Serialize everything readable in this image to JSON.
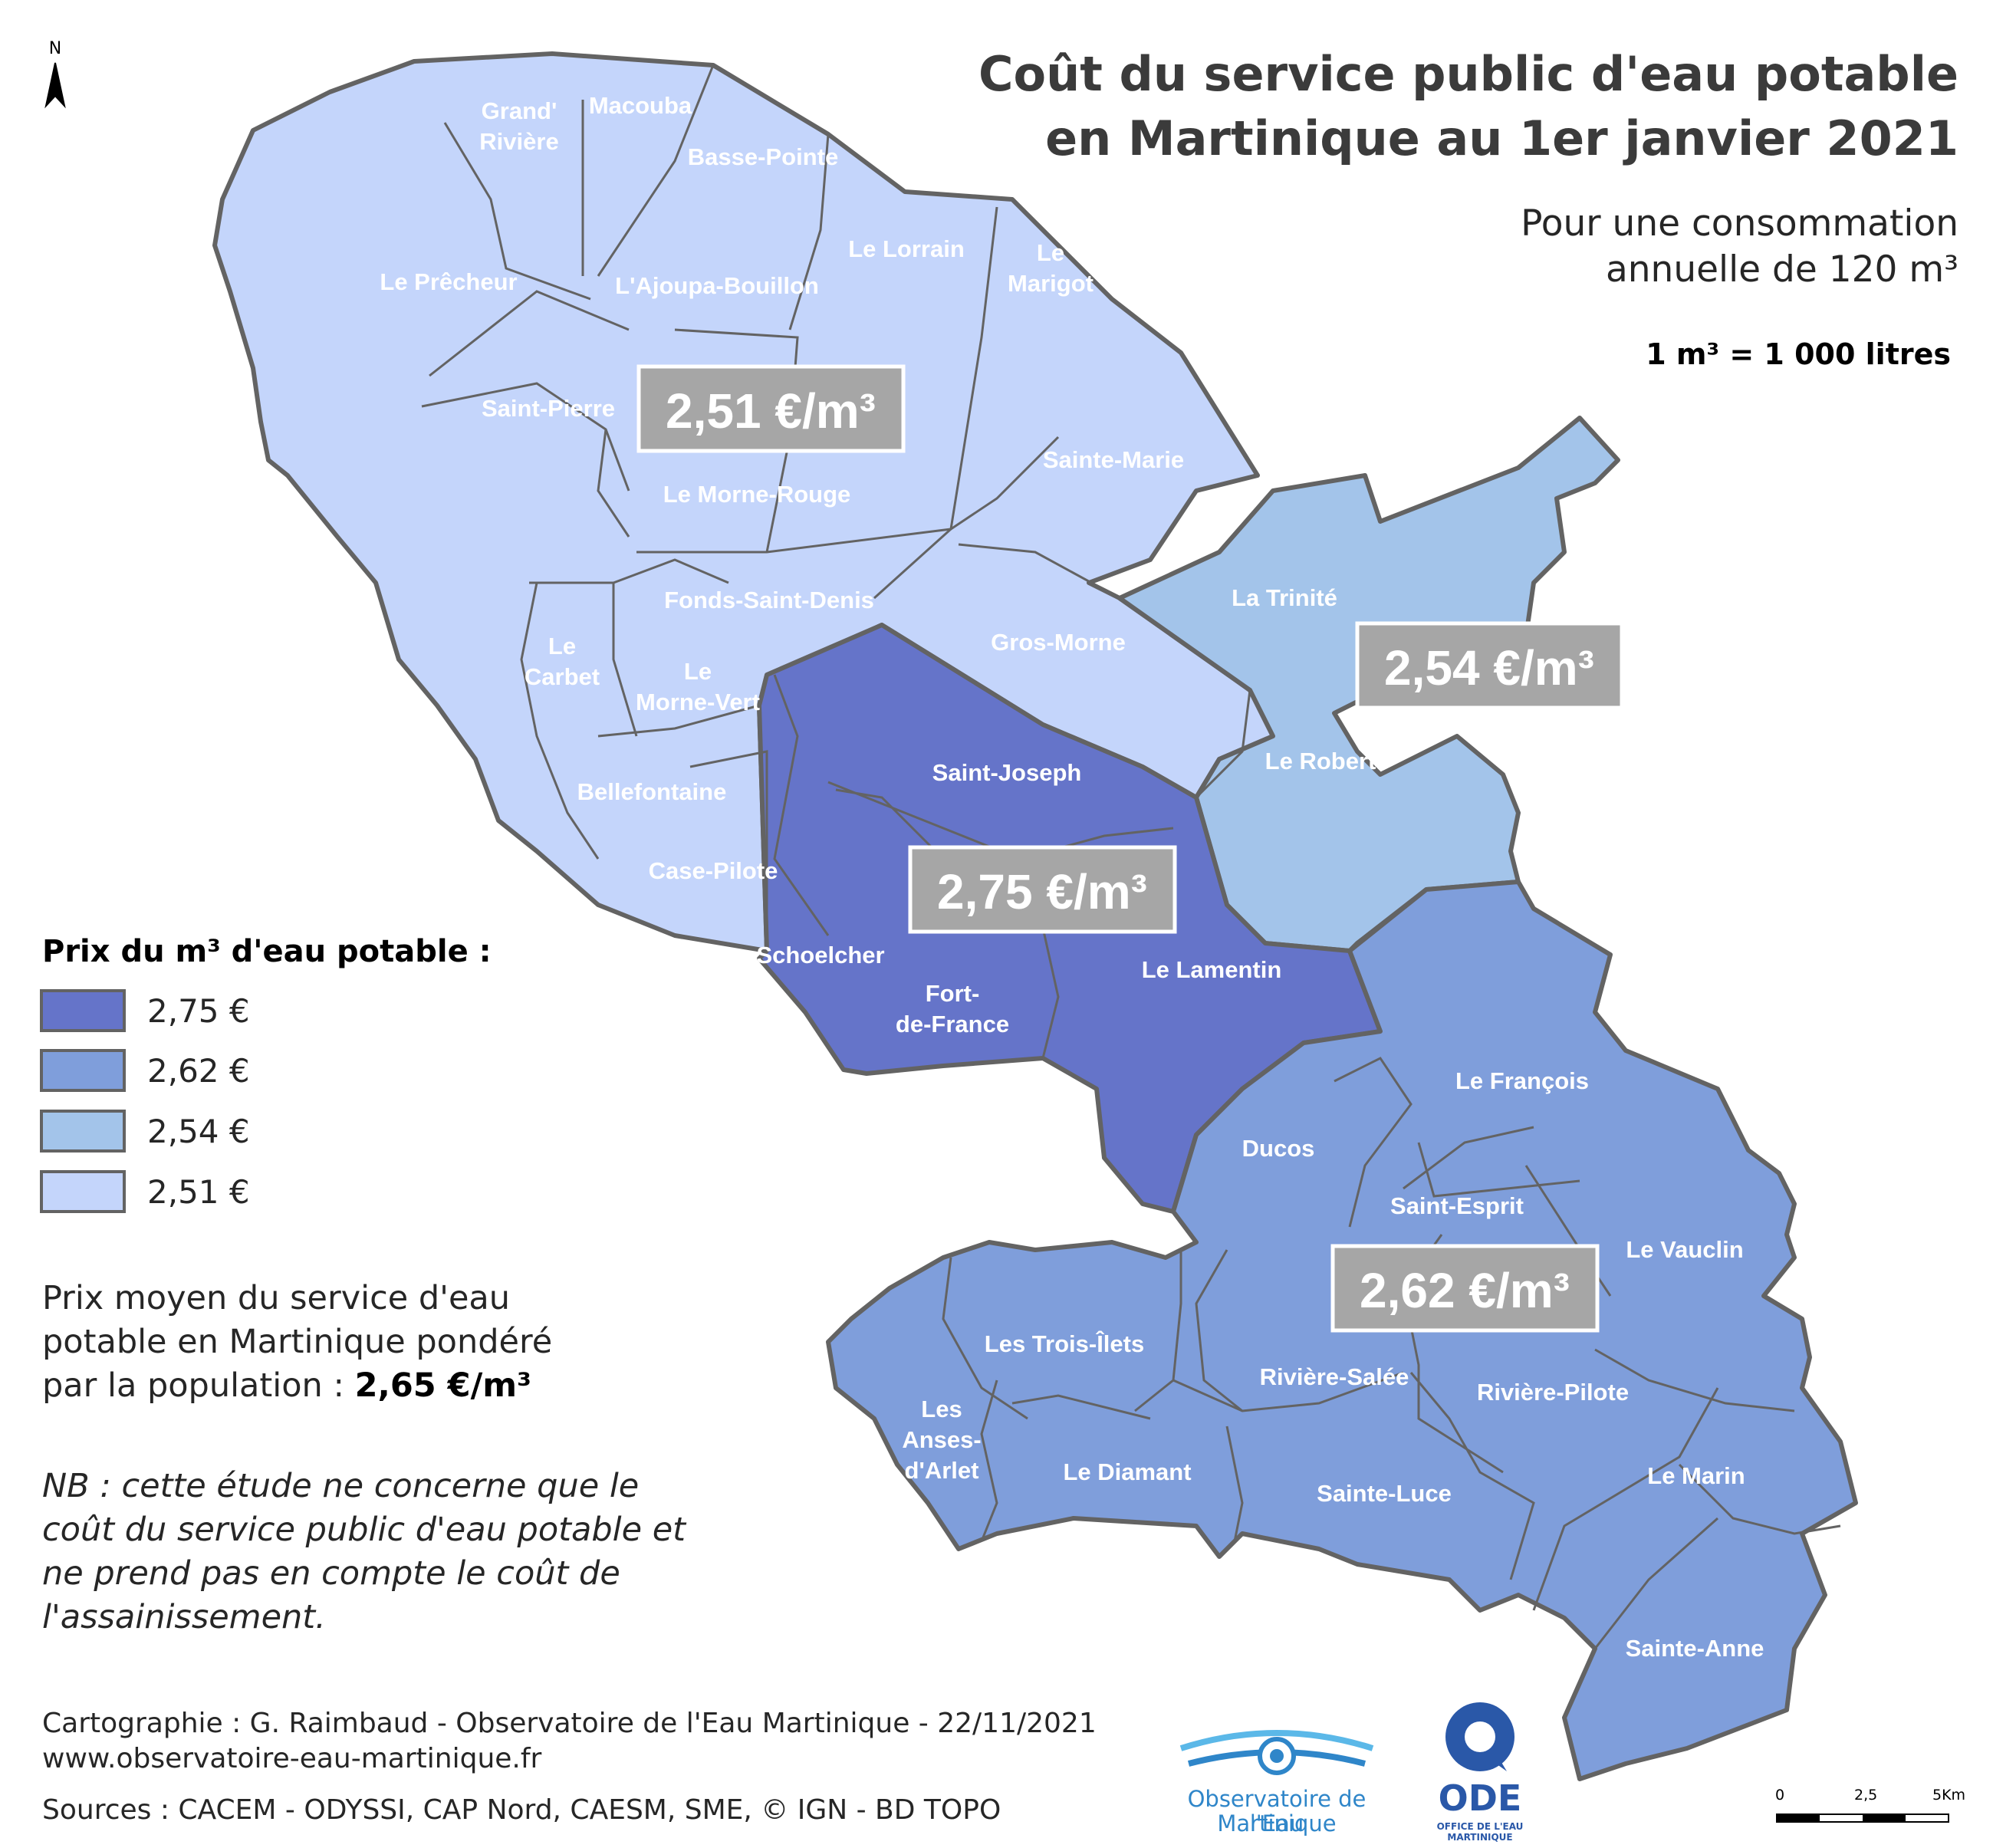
{
  "title": {
    "line1": "Coût du service public d'eau potable",
    "line2": "en Martinique au 1er janvier 2021"
  },
  "subtitle": {
    "line1": "Pour une consommation",
    "line2": "annuelle de 120 m³"
  },
  "conversion": "1 m³ = 1 000 litres",
  "north_label": "N",
  "colors": {
    "tier_275": "#6574c9",
    "tier_262": "#7f9edb",
    "tier_254": "#a3c4ea",
    "tier_251": "#c4d5fb",
    "border": "#636363",
    "price_box": "#a6a6a6"
  },
  "legend": {
    "title": "Prix du m³ d'eau potable :",
    "items": [
      {
        "label": "2,75 €",
        "color": "#6574c9"
      },
      {
        "label": "2,62 €",
        "color": "#7f9edb"
      },
      {
        "label": "2,54 €",
        "color": "#a3c4ea"
      },
      {
        "label": "2,51 €",
        "color": "#c4d5fb"
      }
    ]
  },
  "price_boxes": {
    "north": "2,51 €/m³",
    "east": "2,54 €/m³",
    "center": "2,75 €/m³",
    "south": "2,62 €/m³"
  },
  "communes": {
    "grand_riviere": [
      "Grand'",
      "Rivière"
    ],
    "macouba": "Macouba",
    "basse_pointe": "Basse-Pointe",
    "le_precheur": "Le Prêcheur",
    "ajoupa_bouillon": "L'Ajoupa-Bouillon",
    "le_lorrain": "Le Lorrain",
    "le_marigot": [
      "Le",
      "Marigot"
    ],
    "saint_pierre": "Saint-Pierre",
    "le_morne_rouge": "Le Morne-Rouge",
    "sainte_marie": "Sainte-Marie",
    "fonds_saint_denis": "Fonds-Saint-Denis",
    "le_carbet": [
      "Le",
      "Carbet"
    ],
    "le_morne_vert": [
      "Le",
      "Morne-Vert"
    ],
    "gros_morne": "Gros-Morne",
    "la_trinite": "La Trinité",
    "bellefontaine": "Bellefontaine",
    "saint_joseph": "Saint-Joseph",
    "le_robert": "Le Robert",
    "case_pilote": "Case-Pilote",
    "schoelcher": "Schoelcher",
    "fort_de_france": [
      "Fort-",
      "de-France"
    ],
    "le_lamentin": "Le Lamentin",
    "le_francois": "Le François",
    "ducos": "Ducos",
    "saint_esprit": "Saint-Esprit",
    "le_vauclin": "Le Vauclin",
    "les_trois_ilets": "Les Trois-Îlets",
    "riviere_salee": "Rivière-Salée",
    "riviere_pilote": "Rivière-Pilote",
    "les_anses_d_arlet": [
      "Les",
      "Anses-",
      "d'Arlet"
    ],
    "le_diamant": "Le Diamant",
    "sainte_luce": "Sainte-Luce",
    "le_marin": "Le Marin",
    "sainte_anne": "Sainte-Anne"
  },
  "average": {
    "line1": "Prix moyen du service d'eau",
    "line2": "potable en Martinique pondéré",
    "line3_prefix": "par la population : ",
    "value": "2,65 €/m³"
  },
  "nb": {
    "line1": "NB : cette étude ne concerne que le",
    "line2": "coût du service public d'eau potable et",
    "line3": "ne prend pas en compte le coût de",
    "line4": "l'assainissement."
  },
  "credits": {
    "line1": "Cartographie : G. Raimbaud - Observatoire de l'Eau Martinique - 22/11/2021",
    "line2": "www.observatoire-eau-martinique.fr"
  },
  "sources": "Sources : CACEM - ODYSSI, CAP Nord, CAESM,  SME, © IGN - BD TOPO",
  "logo_oem": {
    "line1": "Observatoire de l'Eau",
    "line2": "Martinique"
  },
  "logo_ode": {
    "name": "ODE",
    "tagline": "OFFICE DE L'EAU MARTINIQUE"
  },
  "scale_bar": {
    "labels": [
      "0",
      "2,5",
      "5Km"
    ]
  }
}
